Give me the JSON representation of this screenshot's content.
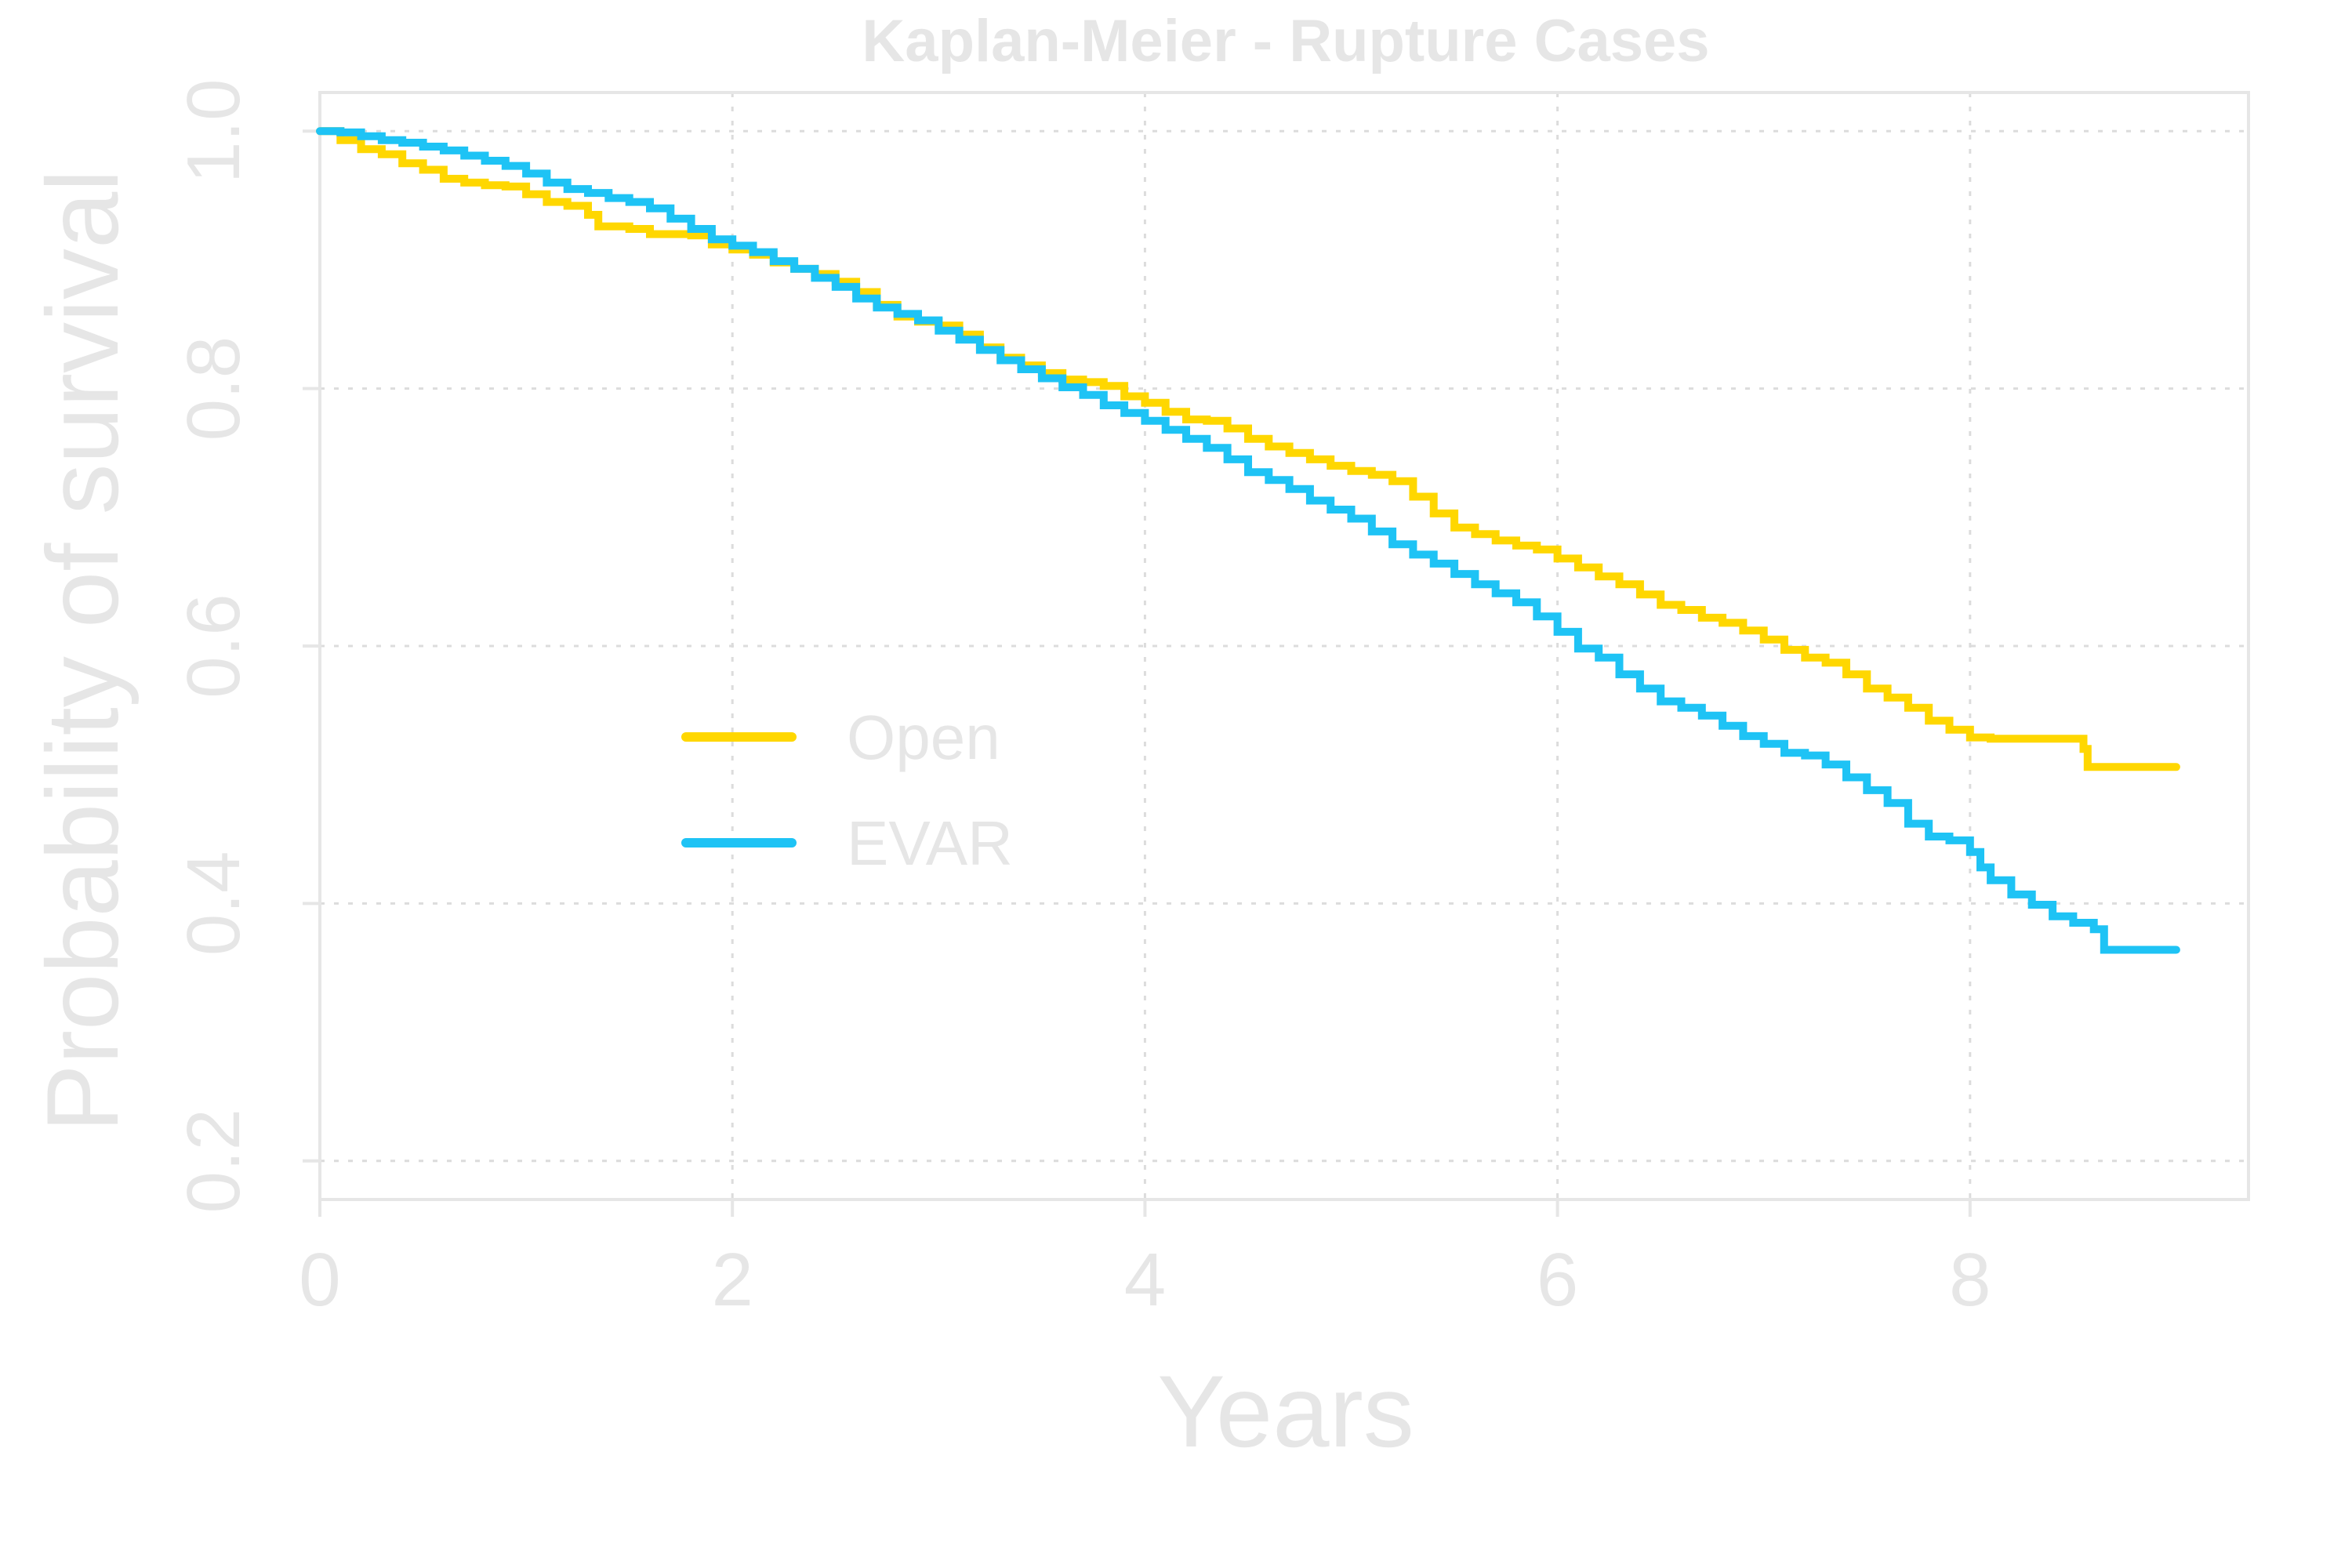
{
  "chart_data": {
    "type": "line",
    "title": "Kaplan-Meier - Rupture Cases",
    "xlabel": "Years",
    "ylabel": "Probability of survival",
    "xlim": [
      0,
      9.35
    ],
    "ylim": [
      0.17,
      1.03
    ],
    "x_ticks": [
      {
        "value": 0,
        "label": "0"
      },
      {
        "value": 2,
        "label": "2"
      },
      {
        "value": 4,
        "label": "4"
      },
      {
        "value": 6,
        "label": "6"
      },
      {
        "value": 8,
        "label": "8"
      }
    ],
    "y_ticks": [
      {
        "value": 0.2,
        "label": "0.2"
      },
      {
        "value": 0.4,
        "label": "0.4"
      },
      {
        "value": 0.6,
        "label": "0.6"
      },
      {
        "value": 0.8,
        "label": "0.8"
      },
      {
        "value": 1.0,
        "label": "1.0"
      }
    ],
    "grid": true,
    "legend_position": "center-left",
    "colors": {
      "text": "#e6e6e6",
      "grid": "#dcdcdc",
      "frame": "#e6e6e6"
    },
    "series": [
      {
        "name": "Open",
        "color": "#ffd700",
        "step": true,
        "points": [
          [
            0,
            1.0
          ],
          [
            0.1,
            0.993
          ],
          [
            0.2,
            0.986
          ],
          [
            0.3,
            0.982
          ],
          [
            0.4,
            0.975
          ],
          [
            0.5,
            0.97
          ],
          [
            0.6,
            0.963
          ],
          [
            0.7,
            0.96
          ],
          [
            0.8,
            0.958
          ],
          [
            0.9,
            0.957
          ],
          [
            1.0,
            0.951
          ],
          [
            1.1,
            0.945
          ],
          [
            1.2,
            0.942
          ],
          [
            1.3,
            0.935
          ],
          [
            1.35,
            0.926
          ],
          [
            1.5,
            0.924
          ],
          [
            1.6,
            0.92
          ],
          [
            1.8,
            0.919
          ],
          [
            1.9,
            0.912
          ],
          [
            2.0,
            0.908
          ],
          [
            2.1,
            0.904
          ],
          [
            2.2,
            0.898
          ],
          [
            2.3,
            0.893
          ],
          [
            2.4,
            0.889
          ],
          [
            2.5,
            0.883
          ],
          [
            2.6,
            0.875
          ],
          [
            2.7,
            0.865
          ],
          [
            2.8,
            0.856
          ],
          [
            2.9,
            0.852
          ],
          [
            3.0,
            0.849
          ],
          [
            3.1,
            0.842
          ],
          [
            3.2,
            0.832
          ],
          [
            3.3,
            0.824
          ],
          [
            3.4,
            0.818
          ],
          [
            3.5,
            0.812
          ],
          [
            3.6,
            0.807
          ],
          [
            3.7,
            0.805
          ],
          [
            3.8,
            0.802
          ],
          [
            3.9,
            0.794
          ],
          [
            4.0,
            0.789
          ],
          [
            4.1,
            0.782
          ],
          [
            4.2,
            0.776
          ],
          [
            4.3,
            0.775
          ],
          [
            4.4,
            0.769
          ],
          [
            4.5,
            0.761
          ],
          [
            4.6,
            0.755
          ],
          [
            4.7,
            0.75
          ],
          [
            4.8,
            0.745
          ],
          [
            4.9,
            0.74
          ],
          [
            5.0,
            0.736
          ],
          [
            5.1,
            0.733
          ],
          [
            5.2,
            0.728
          ],
          [
            5.3,
            0.716
          ],
          [
            5.4,
            0.703
          ],
          [
            5.5,
            0.692
          ],
          [
            5.6,
            0.687
          ],
          [
            5.7,
            0.682
          ],
          [
            5.8,
            0.678
          ],
          [
            5.9,
            0.675
          ],
          [
            6.0,
            0.668
          ],
          [
            6.1,
            0.661
          ],
          [
            6.2,
            0.654
          ],
          [
            6.3,
            0.648
          ],
          [
            6.4,
            0.64
          ],
          [
            6.5,
            0.632
          ],
          [
            6.6,
            0.628
          ],
          [
            6.7,
            0.622
          ],
          [
            6.8,
            0.618
          ],
          [
            6.9,
            0.612
          ],
          [
            7.0,
            0.605
          ],
          [
            7.1,
            0.597
          ],
          [
            7.2,
            0.591
          ],
          [
            7.3,
            0.587
          ],
          [
            7.4,
            0.578
          ],
          [
            7.5,
            0.567
          ],
          [
            7.6,
            0.56
          ],
          [
            7.7,
            0.552
          ],
          [
            7.8,
            0.542
          ],
          [
            7.9,
            0.535
          ],
          [
            8.0,
            0.529
          ],
          [
            8.1,
            0.528
          ],
          [
            8.55,
            0.52
          ],
          [
            8.57,
            0.506
          ],
          [
            9.0,
            0.506
          ]
        ]
      },
      {
        "name": "EVAR",
        "color": "#1ec3f5",
        "step": true,
        "points": [
          [
            0,
            1.0
          ],
          [
            0.1,
            0.999
          ],
          [
            0.2,
            0.996
          ],
          [
            0.3,
            0.993
          ],
          [
            0.4,
            0.991
          ],
          [
            0.5,
            0.988
          ],
          [
            0.6,
            0.985
          ],
          [
            0.7,
            0.981
          ],
          [
            0.8,
            0.977
          ],
          [
            0.9,
            0.973
          ],
          [
            1.0,
            0.967
          ],
          [
            1.1,
            0.96
          ],
          [
            1.2,
            0.955
          ],
          [
            1.3,
            0.952
          ],
          [
            1.4,
            0.948
          ],
          [
            1.5,
            0.945
          ],
          [
            1.6,
            0.94
          ],
          [
            1.7,
            0.932
          ],
          [
            1.8,
            0.924
          ],
          [
            1.9,
            0.916
          ],
          [
            2.0,
            0.911
          ],
          [
            2.1,
            0.906
          ],
          [
            2.2,
            0.899
          ],
          [
            2.3,
            0.893
          ],
          [
            2.4,
            0.886
          ],
          [
            2.5,
            0.879
          ],
          [
            2.6,
            0.87
          ],
          [
            2.7,
            0.863
          ],
          [
            2.8,
            0.858
          ],
          [
            2.9,
            0.853
          ],
          [
            3.0,
            0.845
          ],
          [
            3.1,
            0.838
          ],
          [
            3.2,
            0.83
          ],
          [
            3.3,
            0.822
          ],
          [
            3.4,
            0.815
          ],
          [
            3.5,
            0.808
          ],
          [
            3.6,
            0.801
          ],
          [
            3.7,
            0.795
          ],
          [
            3.8,
            0.787
          ],
          [
            3.9,
            0.781
          ],
          [
            4.0,
            0.775
          ],
          [
            4.1,
            0.768
          ],
          [
            4.2,
            0.761
          ],
          [
            4.3,
            0.754
          ],
          [
            4.4,
            0.745
          ],
          [
            4.5,
            0.735
          ],
          [
            4.6,
            0.729
          ],
          [
            4.7,
            0.722
          ],
          [
            4.8,
            0.713
          ],
          [
            4.9,
            0.706
          ],
          [
            5.0,
            0.699
          ],
          [
            5.1,
            0.689
          ],
          [
            5.2,
            0.679
          ],
          [
            5.3,
            0.671
          ],
          [
            5.4,
            0.664
          ],
          [
            5.5,
            0.656
          ],
          [
            5.6,
            0.648
          ],
          [
            5.7,
            0.641
          ],
          [
            5.8,
            0.634
          ],
          [
            5.9,
            0.623
          ],
          [
            6.0,
            0.611
          ],
          [
            6.1,
            0.598
          ],
          [
            6.2,
            0.591
          ],
          [
            6.3,
            0.578
          ],
          [
            6.4,
            0.567
          ],
          [
            6.5,
            0.557
          ],
          [
            6.6,
            0.552
          ],
          [
            6.7,
            0.546
          ],
          [
            6.8,
            0.538
          ],
          [
            6.9,
            0.53
          ],
          [
            7.0,
            0.524
          ],
          [
            7.1,
            0.517
          ],
          [
            7.2,
            0.515
          ],
          [
            7.3,
            0.508
          ],
          [
            7.4,
            0.498
          ],
          [
            7.5,
            0.488
          ],
          [
            7.6,
            0.478
          ],
          [
            7.7,
            0.462
          ],
          [
            7.8,
            0.452
          ],
          [
            7.9,
            0.449
          ],
          [
            8.0,
            0.44
          ],
          [
            8.05,
            0.428
          ],
          [
            8.1,
            0.418
          ],
          [
            8.2,
            0.407
          ],
          [
            8.3,
            0.399
          ],
          [
            8.4,
            0.39
          ],
          [
            8.5,
            0.385
          ],
          [
            8.6,
            0.38
          ],
          [
            8.65,
            0.364
          ],
          [
            9.0,
            0.364
          ]
        ]
      }
    ]
  }
}
